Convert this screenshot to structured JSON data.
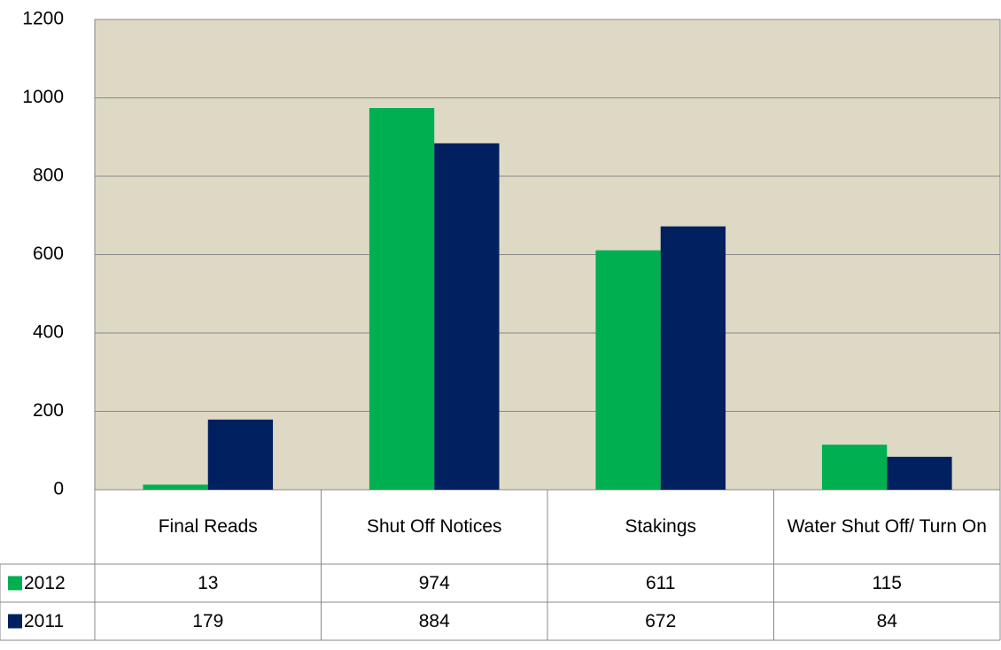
{
  "chart_data": {
    "type": "bar",
    "categories": [
      "Final Reads",
      "Shut Off Notices",
      "Stakings",
      "Water Shut Off/ Turn On"
    ],
    "series": [
      {
        "name": "2012",
        "color": "#00b050",
        "values": [
          13,
          974,
          611,
          115
        ]
      },
      {
        "name": "2011",
        "color": "#002060",
        "values": [
          179,
          884,
          672,
          84
        ]
      }
    ],
    "ylim": [
      0,
      1200
    ],
    "yticks": [
      0,
      200,
      400,
      600,
      800,
      1000,
      1200
    ],
    "grid": true,
    "plot_background": "#ddd9c4",
    "data_table": true
  }
}
